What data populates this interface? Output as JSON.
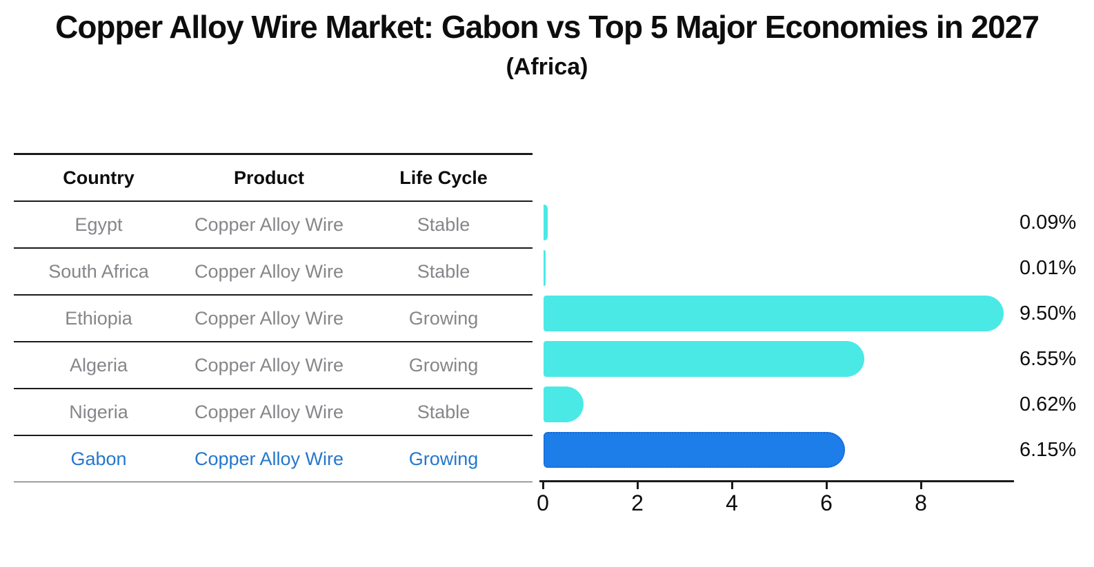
{
  "title": "Copper Alloy Wire Market: Gabon vs Top 5 Major Economies in 2027",
  "subtitle": "(Africa)",
  "table": {
    "headers": [
      "Country",
      "Product",
      "Life Cycle"
    ],
    "rows": [
      {
        "country": "Egypt",
        "product": "Copper Alloy Wire",
        "life_cycle": "Stable",
        "highlight": false
      },
      {
        "country": "South Africa",
        "product": "Copper Alloy Wire",
        "life_cycle": "Stable",
        "highlight": false
      },
      {
        "country": "Ethiopia",
        "product": "Copper Alloy Wire",
        "life_cycle": "Growing",
        "highlight": false
      },
      {
        "country": "Algeria",
        "product": "Copper Alloy Wire",
        "life_cycle": "Growing",
        "highlight": false
      },
      {
        "country": "Nigeria",
        "product": "Copper Alloy Wire",
        "life_cycle": "Stable",
        "highlight": false
      },
      {
        "country": "Gabon",
        "product": "Copper Alloy Wire",
        "life_cycle": "Growing",
        "highlight": true
      }
    ]
  },
  "chart_data": {
    "type": "bar",
    "orientation": "horizontal",
    "categories": [
      "Egypt",
      "South Africa",
      "Ethiopia",
      "Algeria",
      "Nigeria",
      "Gabon"
    ],
    "values": [
      0.09,
      0.01,
      9.5,
      6.55,
      0.62,
      6.15
    ],
    "value_labels": [
      "0.09%",
      "0.01%",
      "9.50%",
      "6.55%",
      "0.62%",
      "6.15%"
    ],
    "highlight_index": 5,
    "x_ticks": [
      "0",
      "2",
      "4",
      "6",
      "8"
    ],
    "x_tick_values": [
      0,
      2,
      4,
      6,
      8
    ],
    "xlim": [
      0,
      10
    ],
    "grid": false,
    "legend": null,
    "title": "Copper Alloy Wire Market: Gabon vs Top 5 Major Economies in 2027 (Africa)"
  },
  "colors": {
    "bar": "#4ae9e6",
    "highlight_bar": "#1d7de9",
    "highlight_border": "#1566d2",
    "axis": "#1a1a1a",
    "table_text": "#85868a",
    "highlight_text": "#2577cd"
  }
}
